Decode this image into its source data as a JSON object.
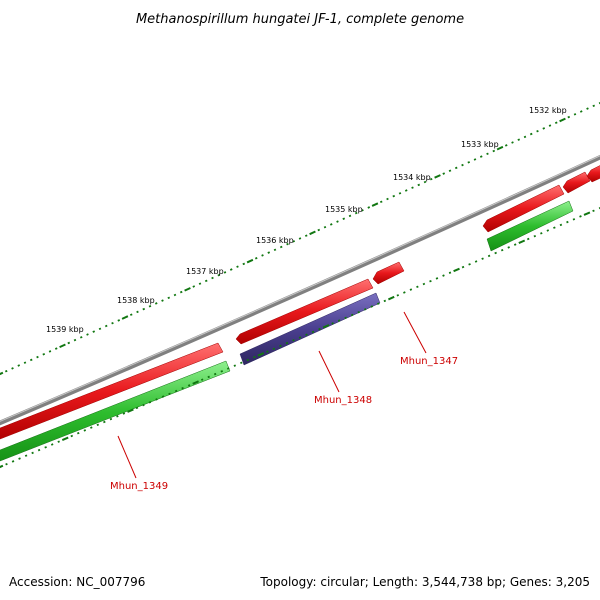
{
  "title": "Methanospirillum hungatei JF-1, complete genome",
  "footer": {
    "accession": "Accession: NC_007796",
    "summary": "Topology: circular; Length: 3,544,738 bp; Genes: 3,205"
  },
  "scale_labels": [
    "1539 kbp",
    "1538 kbp",
    "1537 kbp",
    "1536 kbp",
    "1535 kbp",
    "1534 kbp",
    "1533 kbp",
    "1532 kbp"
  ],
  "gene_labels": [
    "Mhun_1349",
    "Mhun_1348",
    "Mhun_1347"
  ],
  "colors": {
    "backbone": "#808080",
    "cds_forward": "#e8181c",
    "cds_reverse": "#4a3f8f",
    "gene_track": "#2ebd2e",
    "tick": "#117711",
    "gene_label": "#cc0000"
  }
}
